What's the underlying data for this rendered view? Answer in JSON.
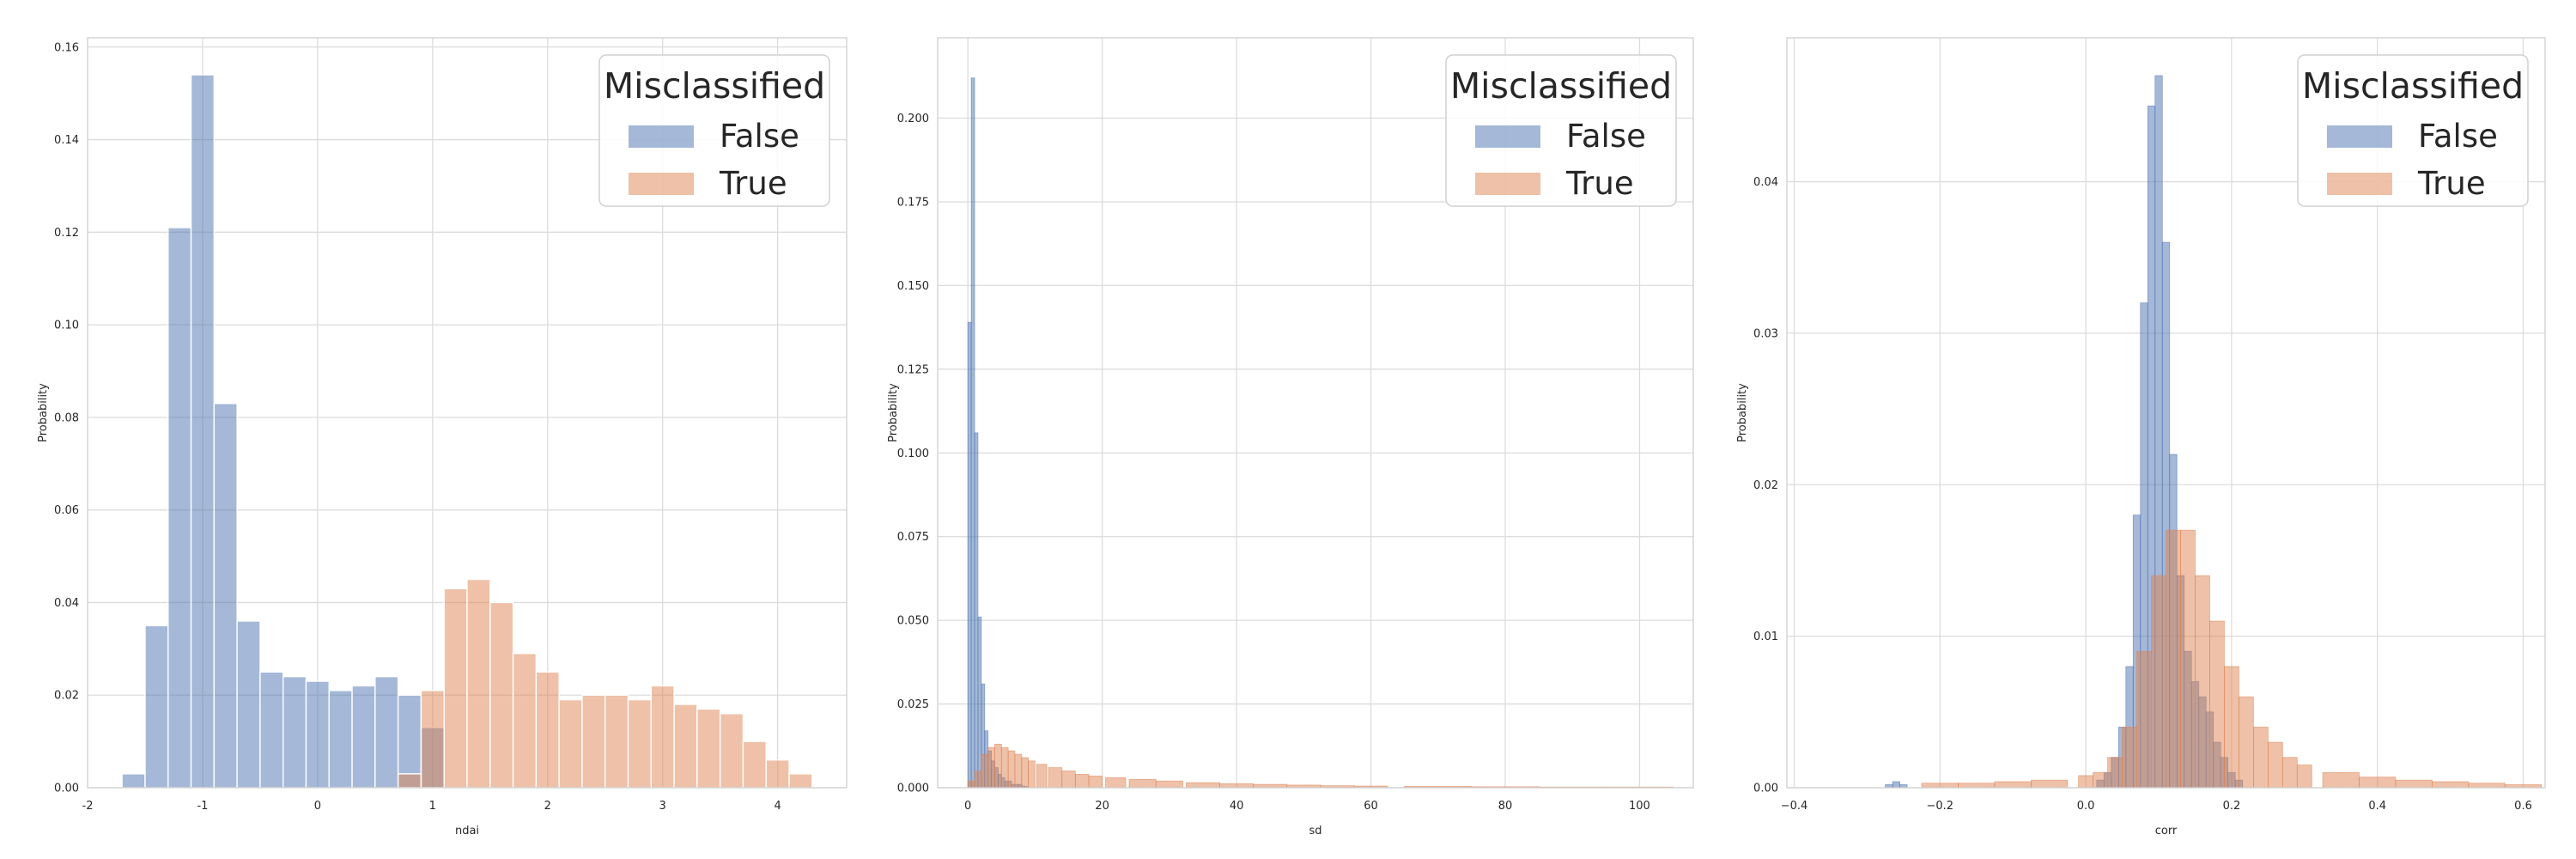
{
  "chart_data": [
    {
      "type": "bar",
      "subtype": "histogram",
      "xlabel": "ndai",
      "ylabel": "Probability",
      "xlim": [
        -2,
        4.6
      ],
      "ylim": [
        0,
        0.162
      ],
      "xticks": [
        -2,
        -1,
        0,
        1,
        2,
        3,
        4
      ],
      "yticks": [
        0.0,
        0.02,
        0.04,
        0.06,
        0.08,
        0.1,
        0.12,
        0.14,
        0.16
      ],
      "ytick_labels": [
        "0.00",
        "0.02",
        "0.04",
        "0.06",
        "0.08",
        "0.10",
        "0.12",
        "0.14",
        "0.16"
      ],
      "grid": true,
      "legend": {
        "title": "Misclassified",
        "entries": [
          "False",
          "True"
        ],
        "placement": "top-right"
      },
      "series": [
        {
          "name": "False",
          "color": "#4c72b0",
          "bin_edges": [
            -1.7,
            -1.5,
            -1.3,
            -1.1,
            -0.9,
            -0.7,
            -0.5,
            -0.3,
            -0.1,
            0.1,
            0.3,
            0.5,
            0.7,
            0.9,
            1.1
          ],
          "values": [
            0.003,
            0.035,
            0.121,
            0.154,
            0.083,
            0.036,
            0.025,
            0.024,
            0.023,
            0.021,
            0.022,
            0.024,
            0.02,
            0.013
          ]
        },
        {
          "name": "True",
          "color": "#dd8452",
          "bin_edges": [
            0.5,
            0.7,
            0.9,
            1.1,
            1.3,
            1.5,
            1.7,
            1.9,
            2.1,
            2.3,
            2.5,
            2.7,
            2.9,
            3.1,
            3.3,
            3.5,
            3.7,
            3.9,
            4.1,
            4.3
          ],
          "values": [
            0.0,
            0.003,
            0.021,
            0.043,
            0.045,
            0.04,
            0.029,
            0.025,
            0.019,
            0.02,
            0.02,
            0.019,
            0.022,
            0.018,
            0.017,
            0.016,
            0.01,
            0.006,
            0.003
          ]
        }
      ]
    },
    {
      "type": "bar",
      "subtype": "histogram",
      "xlabel": "sd",
      "ylabel": "Probability",
      "xlim": [
        -4.5,
        108
      ],
      "ylim": [
        0,
        0.224
      ],
      "xticks": [
        0,
        20,
        40,
        60,
        80,
        100
      ],
      "yticks": [
        0.0,
        0.025,
        0.05,
        0.075,
        0.1,
        0.125,
        0.15,
        0.175,
        0.2
      ],
      "ytick_labels": [
        "0.000",
        "0.025",
        "0.050",
        "0.075",
        "0.100",
        "0.125",
        "0.150",
        "0.175",
        "0.200"
      ],
      "grid": true,
      "legend": {
        "title": "Misclassified",
        "entries": [
          "False",
          "True"
        ],
        "placement": "top-right"
      },
      "series": [
        {
          "name": "False",
          "color": "#4c72b0",
          "x": [
            0.25,
            0.75,
            1.25,
            1.75,
            2.25,
            2.75,
            3.25,
            3.75,
            4.25,
            4.75,
            5.25,
            5.75,
            6.25,
            6.75,
            7.25,
            7.75,
            8.25,
            8.75
          ],
          "values": [
            0.139,
            0.212,
            0.106,
            0.051,
            0.031,
            0.017,
            0.011,
            0.008,
            0.006,
            0.004,
            0.003,
            0.002,
            0.002,
            0.001,
            0.001,
            0.001,
            0.0005,
            0.0003
          ]
        },
        {
          "name": "True",
          "color": "#dd8452",
          "x": [
            0.5,
            1.5,
            2.5,
            3.5,
            4.5,
            5.5,
            6.5,
            7.5,
            8.5,
            9.5,
            11,
            13,
            15,
            17,
            19,
            22,
            26,
            30,
            35,
            40,
            45,
            50,
            55,
            60,
            70,
            80,
            90,
            100
          ],
          "values": [
            0.002,
            0.005,
            0.01,
            0.012,
            0.013,
            0.012,
            0.011,
            0.01,
            0.009,
            0.008,
            0.007,
            0.006,
            0.005,
            0.004,
            0.0035,
            0.003,
            0.0025,
            0.002,
            0.0015,
            0.0012,
            0.001,
            0.0008,
            0.0006,
            0.0005,
            0.0004,
            0.0003,
            0.0002,
            0.0002
          ]
        }
      ]
    },
    {
      "type": "bar",
      "subtype": "histogram",
      "xlabel": "corr",
      "ylabel": "Probability",
      "xlim": [
        -0.41,
        0.63
      ],
      "ylim": [
        0,
        0.0495
      ],
      "xticks": [
        -0.4,
        -0.2,
        0.0,
        0.2,
        0.4,
        0.6
      ],
      "xtick_labels": [
        "−0.4",
        "−0.2",
        "0.0",
        "0.2",
        "0.4",
        "0.6"
      ],
      "yticks": [
        0.0,
        0.01,
        0.02,
        0.03,
        0.04
      ],
      "ytick_labels": [
        "0.00",
        "0.01",
        "0.02",
        "0.03",
        "0.04"
      ],
      "grid": true,
      "legend": {
        "title": "Misclassified",
        "entries": [
          "False",
          "True"
        ],
        "placement": "top-right"
      },
      "series": [
        {
          "name": "False",
          "color": "#4c72b0",
          "x": [
            -0.27,
            -0.26,
            -0.25,
            0.02,
            0.03,
            0.04,
            0.05,
            0.06,
            0.07,
            0.08,
            0.09,
            0.1,
            0.11,
            0.12,
            0.13,
            0.14,
            0.15,
            0.16,
            0.17,
            0.18,
            0.19,
            0.2,
            0.21
          ],
          "values": [
            0.0002,
            0.0004,
            0.0002,
            0.0005,
            0.001,
            0.002,
            0.004,
            0.008,
            0.018,
            0.032,
            0.045,
            0.047,
            0.036,
            0.022,
            0.014,
            0.009,
            0.007,
            0.006,
            0.005,
            0.003,
            0.002,
            0.001,
            0.0005
          ]
        },
        {
          "name": "True",
          "color": "#dd8452",
          "x": [
            -0.2,
            -0.15,
            -0.1,
            -0.05,
            0.0,
            0.02,
            0.04,
            0.06,
            0.08,
            0.1,
            0.12,
            0.14,
            0.16,
            0.18,
            0.2,
            0.22,
            0.24,
            0.26,
            0.28,
            0.3,
            0.35,
            0.4,
            0.45,
            0.5,
            0.55,
            0.6
          ],
          "values": [
            0.0003,
            0.0003,
            0.0004,
            0.0005,
            0.0008,
            0.001,
            0.002,
            0.004,
            0.009,
            0.014,
            0.017,
            0.017,
            0.014,
            0.011,
            0.008,
            0.006,
            0.004,
            0.003,
            0.002,
            0.0015,
            0.001,
            0.0007,
            0.0005,
            0.0004,
            0.0003,
            0.0002
          ]
        }
      ]
    }
  ]
}
